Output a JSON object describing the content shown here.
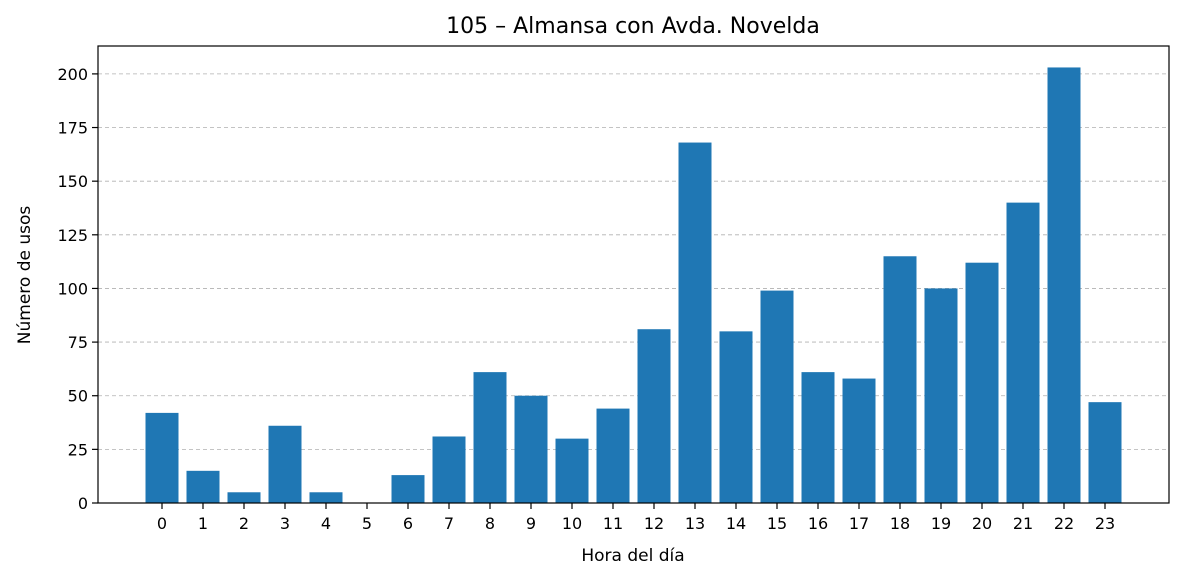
{
  "chart_data": {
    "type": "bar",
    "title": "105 – Almansa con Avda. Novelda",
    "xlabel": "Hora del día",
    "ylabel": "Número de usos",
    "categories": [
      "0",
      "1",
      "2",
      "3",
      "4",
      "5",
      "6",
      "7",
      "8",
      "9",
      "10",
      "11",
      "12",
      "13",
      "14",
      "15",
      "16",
      "17",
      "18",
      "19",
      "20",
      "21",
      "22",
      "23"
    ],
    "values": [
      42,
      15,
      5,
      36,
      5,
      0,
      13,
      31,
      61,
      50,
      30,
      44,
      81,
      168,
      80,
      99,
      61,
      58,
      115,
      100,
      112,
      140,
      203,
      47
    ],
    "yticks": [
      0,
      25,
      50,
      75,
      100,
      125,
      150,
      175,
      200
    ],
    "ylim": [
      0,
      213
    ],
    "grid": "y-dashed",
    "bar_color": "#1f77b4"
  }
}
